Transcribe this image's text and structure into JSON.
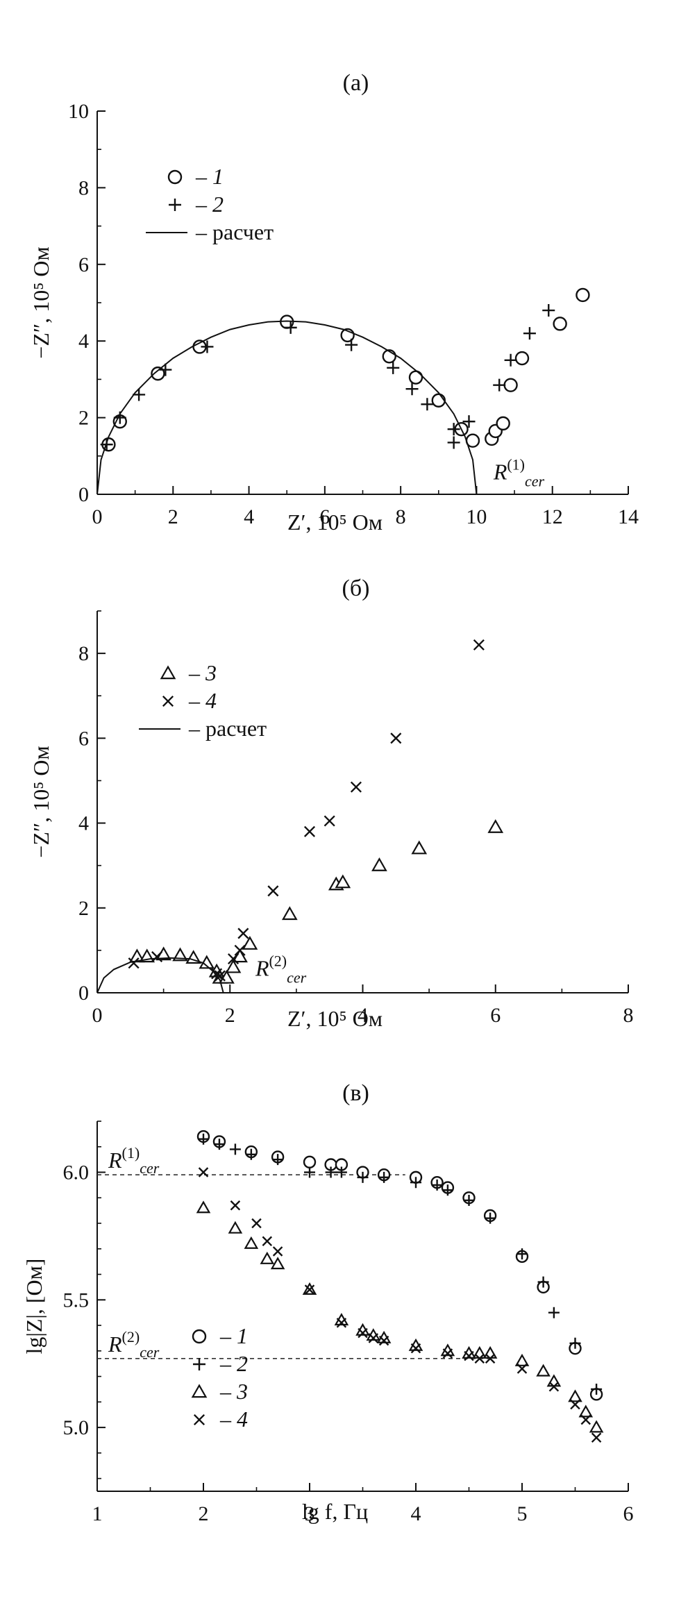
{
  "chart_data": [
    {
      "type": "scatter",
      "panel": "(a)",
      "xlabel": "Z′, 10⁵ Ом",
      "ylabel": "−Z″, 10⁵ Ом",
      "xlim": [
        0,
        14
      ],
      "ylim": [
        0,
        10
      ],
      "xticks": [
        0,
        2,
        4,
        6,
        8,
        10,
        12,
        14
      ],
      "yticks": [
        0,
        2,
        4,
        6,
        8,
        10
      ],
      "legend_position": "top-left",
      "legend": [
        {
          "marker": "○",
          "label": "1"
        },
        {
          "marker": "+",
          "label": "2"
        },
        {
          "marker": "—",
          "label": "расчет"
        }
      ],
      "annotation": {
        "text": "R",
        "sup": "(1)",
        "sub": "cer",
        "x": 10.3,
        "y": 0.5
      },
      "series": [
        {
          "name": "1",
          "marker": "circle",
          "points": [
            [
              0.3,
              1.3
            ],
            [
              0.6,
              1.9
            ],
            [
              1.6,
              3.15
            ],
            [
              2.7,
              3.85
            ],
            [
              5.0,
              4.5
            ],
            [
              6.6,
              4.15
            ],
            [
              7.7,
              3.6
            ],
            [
              8.4,
              3.05
            ],
            [
              9.0,
              2.45
            ],
            [
              9.6,
              1.7
            ],
            [
              9.9,
              1.4
            ],
            [
              10.4,
              1.45
            ],
            [
              10.5,
              1.65
            ],
            [
              10.7,
              1.85
            ],
            [
              10.9,
              2.85
            ],
            [
              11.2,
              3.55
            ],
            [
              12.2,
              4.45
            ],
            [
              12.8,
              5.2
            ]
          ]
        },
        {
          "name": "2",
          "marker": "plus",
          "points": [
            [
              0.25,
              1.3
            ],
            [
              0.6,
              2.0
            ],
            [
              1.1,
              2.6
            ],
            [
              1.8,
              3.25
            ],
            [
              2.9,
              3.85
            ],
            [
              5.1,
              4.35
            ],
            [
              6.7,
              3.9
            ],
            [
              7.8,
              3.3
            ],
            [
              8.3,
              2.75
            ],
            [
              8.7,
              2.35
            ],
            [
              9.4,
              1.7
            ],
            [
              9.4,
              1.35
            ],
            [
              9.8,
              1.9
            ],
            [
              10.6,
              2.85
            ],
            [
              10.9,
              3.5
            ],
            [
              11.4,
              4.2
            ],
            [
              11.9,
              4.8
            ]
          ]
        },
        {
          "name": "расчет",
          "type": "line",
          "points": [
            [
              0.0,
              0.0
            ],
            [
              0.1,
              0.9
            ],
            [
              0.3,
              1.5
            ],
            [
              0.6,
              2.1
            ],
            [
              1.0,
              2.65
            ],
            [
              1.5,
              3.15
            ],
            [
              2.0,
              3.55
            ],
            [
              2.5,
              3.85
            ],
            [
              3.0,
              4.1
            ],
            [
              3.5,
              4.3
            ],
            [
              4.0,
              4.42
            ],
            [
              4.5,
              4.5
            ],
            [
              5.0,
              4.52
            ],
            [
              5.5,
              4.5
            ],
            [
              6.0,
              4.42
            ],
            [
              6.5,
              4.3
            ],
            [
              7.0,
              4.1
            ],
            [
              7.5,
              3.85
            ],
            [
              8.0,
              3.55
            ],
            [
              8.5,
              3.15
            ],
            [
              9.0,
              2.65
            ],
            [
              9.4,
              2.1
            ],
            [
              9.7,
              1.5
            ],
            [
              9.9,
              0.9
            ],
            [
              10.0,
              0.0
            ]
          ]
        }
      ]
    },
    {
      "type": "scatter",
      "panel": "(б)",
      "xlabel": "Z′, 10⁵ Ом",
      "ylabel": "−Z″, 10⁵ Ом",
      "xlim": [
        0,
        8
      ],
      "ylim": [
        0,
        9
      ],
      "xticks": [
        0,
        2,
        4,
        6,
        8
      ],
      "yticks": [
        0,
        2,
        4,
        6,
        8
      ],
      "legend_position": "top-left",
      "legend": [
        {
          "marker": "△",
          "label": "3"
        },
        {
          "marker": "×",
          "label": "4"
        },
        {
          "marker": "—",
          "label": "расчет"
        }
      ],
      "annotation": {
        "text": "R",
        "sup": "(2)",
        "sub": "cer",
        "x": 2.3,
        "y": 0.5
      },
      "series": [
        {
          "name": "3",
          "marker": "triangle",
          "points": [
            [
              0.6,
              0.85
            ],
            [
              0.75,
              0.85
            ],
            [
              1.0,
              0.9
            ],
            [
              1.25,
              0.88
            ],
            [
              1.45,
              0.82
            ],
            [
              1.65,
              0.7
            ],
            [
              1.8,
              0.5
            ],
            [
              1.85,
              0.35
            ],
            [
              1.95,
              0.35
            ],
            [
              2.05,
              0.6
            ],
            [
              2.15,
              0.85
            ],
            [
              2.3,
              1.15
            ],
            [
              2.9,
              1.85
            ],
            [
              3.6,
              2.55
            ],
            [
              3.7,
              2.6
            ],
            [
              4.25,
              3.0
            ],
            [
              4.85,
              3.4
            ],
            [
              6.0,
              3.9
            ]
          ]
        },
        {
          "name": "4",
          "marker": "cross",
          "points": [
            [
              0.55,
              0.7
            ],
            [
              0.9,
              0.85
            ],
            [
              1.8,
              0.45
            ],
            [
              1.85,
              0.4
            ],
            [
              2.05,
              0.8
            ],
            [
              2.15,
              1.0
            ],
            [
              2.2,
              1.4
            ],
            [
              2.65,
              2.4
            ],
            [
              3.2,
              3.8
            ],
            [
              3.5,
              4.05
            ],
            [
              3.9,
              4.85
            ],
            [
              4.5,
              6.0
            ],
            [
              5.75,
              8.2
            ]
          ]
        },
        {
          "name": "расчет",
          "type": "line",
          "points": [
            [
              0.0,
              0.0
            ],
            [
              0.1,
              0.35
            ],
            [
              0.25,
              0.55
            ],
            [
              0.5,
              0.72
            ],
            [
              0.8,
              0.8
            ],
            [
              1.1,
              0.82
            ],
            [
              1.4,
              0.8
            ],
            [
              1.6,
              0.7
            ],
            [
              1.75,
              0.5
            ],
            [
              1.85,
              0.3
            ],
            [
              1.9,
              0.0
            ]
          ]
        }
      ]
    },
    {
      "type": "scatter",
      "panel": "(в)",
      "xlabel": "lg f, Гц",
      "ylabel": "lg|Z|, [Ом]",
      "xlim": [
        1,
        6
      ],
      "ylim": [
        4.75,
        6.2
      ],
      "xticks": [
        1,
        2,
        3,
        4,
        5,
        6
      ],
      "yticks": [
        5.0,
        5.5,
        6.0
      ],
      "ytick_labels": [
        "5.0",
        "5.5",
        "6.0"
      ],
      "legend_position": "bottom-left",
      "legend": [
        {
          "marker": "○",
          "label": "1"
        },
        {
          "marker": "+",
          "label": "2"
        },
        {
          "marker": "△",
          "label": "3"
        },
        {
          "marker": "×",
          "label": "4"
        }
      ],
      "reference_lines": [
        {
          "label": "R",
          "sup": "(1)",
          "sub": "cer",
          "y": 5.99,
          "style": "dashed",
          "x_end": 3.9
        },
        {
          "label": "R",
          "sup": "(2)",
          "sub": "cer",
          "y": 5.27,
          "style": "dashed",
          "x_end": 4.7
        }
      ],
      "series": [
        {
          "name": "1",
          "marker": "circle",
          "points": [
            [
              2.0,
              6.14
            ],
            [
              2.15,
              6.12
            ],
            [
              2.45,
              6.08
            ],
            [
              2.7,
              6.06
            ],
            [
              3.0,
              6.04
            ],
            [
              3.2,
              6.03
            ],
            [
              3.3,
              6.03
            ],
            [
              3.5,
              6.0
            ],
            [
              3.7,
              5.99
            ],
            [
              4.0,
              5.98
            ],
            [
              4.2,
              5.96
            ],
            [
              4.3,
              5.94
            ],
            [
              4.5,
              5.9
            ],
            [
              4.7,
              5.83
            ],
            [
              5.0,
              5.67
            ],
            [
              5.2,
              5.55
            ],
            [
              5.5,
              5.31
            ],
            [
              5.7,
              5.13
            ]
          ]
        },
        {
          "name": "2",
          "marker": "plus",
          "points": [
            [
              2.0,
              6.13
            ],
            [
              2.15,
              6.11
            ],
            [
              2.3,
              6.09
            ],
            [
              2.45,
              6.07
            ],
            [
              2.7,
              6.05
            ],
            [
              3.0,
              6.0
            ],
            [
              3.2,
              6.0
            ],
            [
              3.3,
              6.0
            ],
            [
              3.5,
              5.98
            ],
            [
              3.7,
              5.98
            ],
            [
              4.0,
              5.96
            ],
            [
              4.2,
              5.95
            ],
            [
              4.3,
              5.93
            ],
            [
              4.5,
              5.89
            ],
            [
              4.7,
              5.82
            ],
            [
              5.0,
              5.68
            ],
            [
              5.2,
              5.57
            ],
            [
              5.3,
              5.45
            ],
            [
              5.5,
              5.33
            ],
            [
              5.7,
              5.15
            ]
          ]
        },
        {
          "name": "3",
          "marker": "triangle",
          "points": [
            [
              2.0,
              5.86
            ],
            [
              2.3,
              5.78
            ],
            [
              2.45,
              5.72
            ],
            [
              2.6,
              5.66
            ],
            [
              2.7,
              5.64
            ],
            [
              3.0,
              5.54
            ],
            [
              3.3,
              5.42
            ],
            [
              3.5,
              5.38
            ],
            [
              3.6,
              5.36
            ],
            [
              3.7,
              5.35
            ],
            [
              4.0,
              5.32
            ],
            [
              4.3,
              5.3
            ],
            [
              4.5,
              5.29
            ],
            [
              4.6,
              5.29
            ],
            [
              4.7,
              5.29
            ],
            [
              5.0,
              5.26
            ],
            [
              5.2,
              5.22
            ],
            [
              5.3,
              5.18
            ],
            [
              5.5,
              5.12
            ],
            [
              5.6,
              5.06
            ],
            [
              5.7,
              5.0
            ]
          ]
        },
        {
          "name": "4",
          "marker": "cross",
          "points": [
            [
              2.0,
              6.0
            ],
            [
              2.3,
              5.87
            ],
            [
              2.5,
              5.8
            ],
            [
              2.6,
              5.73
            ],
            [
              2.7,
              5.69
            ],
            [
              3.0,
              5.54
            ],
            [
              3.3,
              5.41
            ],
            [
              3.5,
              5.37
            ],
            [
              3.6,
              5.35
            ],
            [
              3.7,
              5.34
            ],
            [
              4.0,
              5.31
            ],
            [
              4.3,
              5.29
            ],
            [
              4.5,
              5.28
            ],
            [
              4.6,
              5.27
            ],
            [
              4.7,
              5.27
            ],
            [
              5.0,
              5.23
            ],
            [
              5.3,
              5.16
            ],
            [
              5.5,
              5.09
            ],
            [
              5.6,
              5.03
            ],
            [
              5.7,
              4.96
            ]
          ]
        }
      ]
    }
  ]
}
